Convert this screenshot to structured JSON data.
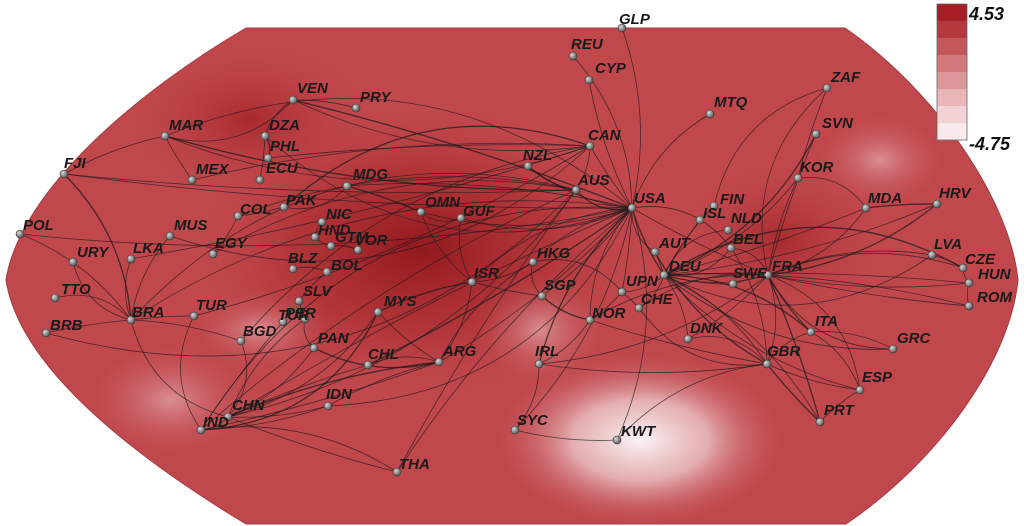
{
  "legend": {
    "max_label": "4.53",
    "min_label": "-4.75",
    "colors": [
      "#a41e24",
      "#b3393e",
      "#c4575a",
      "#d2777a",
      "#de9799",
      "#e9b6b8",
      "#f2d2d4",
      "#f9ebec"
    ]
  },
  "palette": {
    "map_base": "#c0474c",
    "map_dark": "#8f161b",
    "map_light": "#f7f1f2",
    "node": "#6e6e6e",
    "edge": "#1a1a1a"
  },
  "nodes": [
    {
      "id": "GLP"
    },
    {
      "id": "REU"
    },
    {
      "id": "CYP"
    },
    {
      "id": "ZAF"
    },
    {
      "id": "VEN"
    },
    {
      "id": "PRY"
    },
    {
      "id": "MTQ"
    },
    {
      "id": "MAR"
    },
    {
      "id": "DZA"
    },
    {
      "id": "SVN"
    },
    {
      "id": "CAN"
    },
    {
      "id": "PHL"
    },
    {
      "id": "FJI"
    },
    {
      "id": "NZL"
    },
    {
      "id": "MEX"
    },
    {
      "id": "ECU"
    },
    {
      "id": "MDG"
    },
    {
      "id": "KOR"
    },
    {
      "id": "AUS"
    },
    {
      "id": "HRV"
    },
    {
      "id": "USA"
    },
    {
      "id": "FIN"
    },
    {
      "id": "MDA"
    },
    {
      "id": "PAK"
    },
    {
      "id": "OMN"
    },
    {
      "id": "COL"
    },
    {
      "id": "GUF"
    },
    {
      "id": "ISL"
    },
    {
      "id": "NLD"
    },
    {
      "id": "POL"
    },
    {
      "id": "NIC"
    },
    {
      "id": "MUS"
    },
    {
      "id": "HND"
    },
    {
      "id": "GTM"
    },
    {
      "id": "VOR"
    },
    {
      "id": "AUT"
    },
    {
      "id": "BEL"
    },
    {
      "id": "EGY"
    },
    {
      "id": "LKA"
    },
    {
      "id": "LVA"
    },
    {
      "id": "URY"
    },
    {
      "id": "HKG"
    },
    {
      "id": "CZE"
    },
    {
      "id": "BLZ"
    },
    {
      "id": "BOL"
    },
    {
      "id": "DEU"
    },
    {
      "id": "FRA"
    },
    {
      "id": "ISR"
    },
    {
      "id": "SWE"
    },
    {
      "id": "HUN"
    },
    {
      "id": "TTO"
    },
    {
      "id": "UPN"
    },
    {
      "id": "SLV"
    },
    {
      "id": "SGP"
    },
    {
      "id": "CHE"
    },
    {
      "id": "ROM"
    },
    {
      "id": "BRA"
    },
    {
      "id": "TUR"
    },
    {
      "id": "PER"
    },
    {
      "id": "MYS"
    },
    {
      "id": "BRB"
    },
    {
      "id": "TUR"
    },
    {
      "id": "NOR"
    },
    {
      "id": "ITA"
    },
    {
      "id": "BGD"
    },
    {
      "id": "PAN"
    },
    {
      "id": "DNK"
    },
    {
      "id": "GRC"
    },
    {
      "id": "CHL"
    },
    {
      "id": "ARG"
    },
    {
      "id": "IRL"
    },
    {
      "id": "GBR"
    },
    {
      "id": "ESP"
    },
    {
      "id": "CHN"
    },
    {
      "id": "IDN"
    },
    {
      "id": "PRT"
    },
    {
      "id": "IND"
    },
    {
      "id": "SYC"
    },
    {
      "id": "KWT"
    },
    {
      "id": "THA"
    }
  ]
}
